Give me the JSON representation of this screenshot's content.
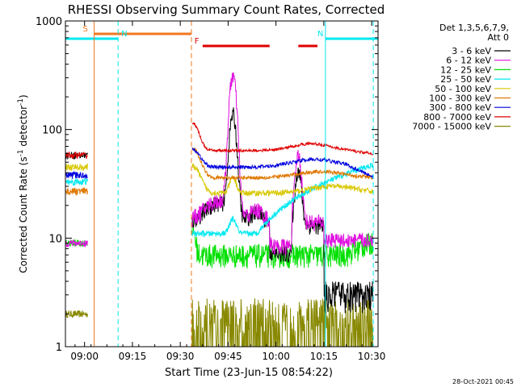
{
  "chart_data": {
    "type": "line",
    "title": "RHESSI Observing Summary Count Rates, Corrected",
    "xlabel": "Start Time (23-Jun-15 08:54:22)",
    "ylabel_main": "Corrected Count Rate (s",
    "ylabel_sup1": "-1",
    "ylabel_mid": " detector",
    "ylabel_sup2": "-1",
    "ylabel_end": ")",
    "x_range_min": [
      0,
      98
    ],
    "y_scale": "log",
    "y_range": [
      1,
      1000
    ],
    "x_ticks": [
      {
        "min": 6,
        "label": "09:00"
      },
      {
        "min": 21,
        "label": "09:15"
      },
      {
        "min": 36,
        "label": "09:30"
      },
      {
        "min": 51,
        "label": "09:45"
      },
      {
        "min": 66,
        "label": "10:00"
      },
      {
        "min": 81,
        "label": "10:15"
      },
      {
        "min": 96,
        "label": "10:30"
      }
    ],
    "y_ticks": [
      {
        "value": 1,
        "label": "1"
      },
      {
        "value": 10,
        "label": "10"
      },
      {
        "value": 100,
        "label": "100"
      },
      {
        "value": 1000,
        "label": "1000"
      }
    ],
    "legend_header": [
      "Det 1,3,5,6,7,9,",
      "Att 0"
    ],
    "series": [
      {
        "name": "3 - 6 keV",
        "color": "#000000"
      },
      {
        "name": "6 - 12 keV",
        "color": "#e010e0"
      },
      {
        "name": "12 - 25 keV",
        "color": "#00e000"
      },
      {
        "name": "25 - 50 keV",
        "color": "#00e8f0"
      },
      {
        "name": "50 - 100 keV",
        "color": "#d8c800"
      },
      {
        "name": "100 - 300 keV",
        "color": "#e07800"
      },
      {
        "name": "300 - 800 keV",
        "color": "#0000e0"
      },
      {
        "name": "800 - 7000 keV",
        "color": "#e00000"
      },
      {
        "name": "7000 - 15000 keV",
        "color": "#888800"
      }
    ],
    "flags": [
      {
        "label": "S",
        "color": "#f07820",
        "start_min": 9,
        "end_min": 39.5
      },
      {
        "label": "N",
        "color": "#00e8f0",
        "start_min": 0,
        "end_min": 16.5
      },
      {
        "label": "N",
        "color": "#00e8f0",
        "start_min": 81.5,
        "end_min": 98
      },
      {
        "label": "F",
        "color": "#e00000",
        "start_min": 43,
        "end_min": 64
      },
      {
        "label": "",
        "color": "#e00000",
        "start_min": 73,
        "end_min": 79
      }
    ],
    "vlines": [
      {
        "min": 9,
        "color": "#f07820",
        "style": "solid"
      },
      {
        "min": 16.5,
        "color": "#00e8f0",
        "style": "dashed"
      },
      {
        "min": 39.5,
        "color": "#f07820",
        "style": "dashed"
      },
      {
        "min": 81.5,
        "color": "#00e8f0",
        "style": "solid"
      },
      {
        "min": 96.5,
        "color": "#00e8f0",
        "style": "dashed"
      }
    ],
    "data_gaps_min": [
      [
        7,
        39.5
      ],
      [
        96.5,
        98
      ]
    ],
    "timestamp": "28-Oct-2021 00:45"
  }
}
